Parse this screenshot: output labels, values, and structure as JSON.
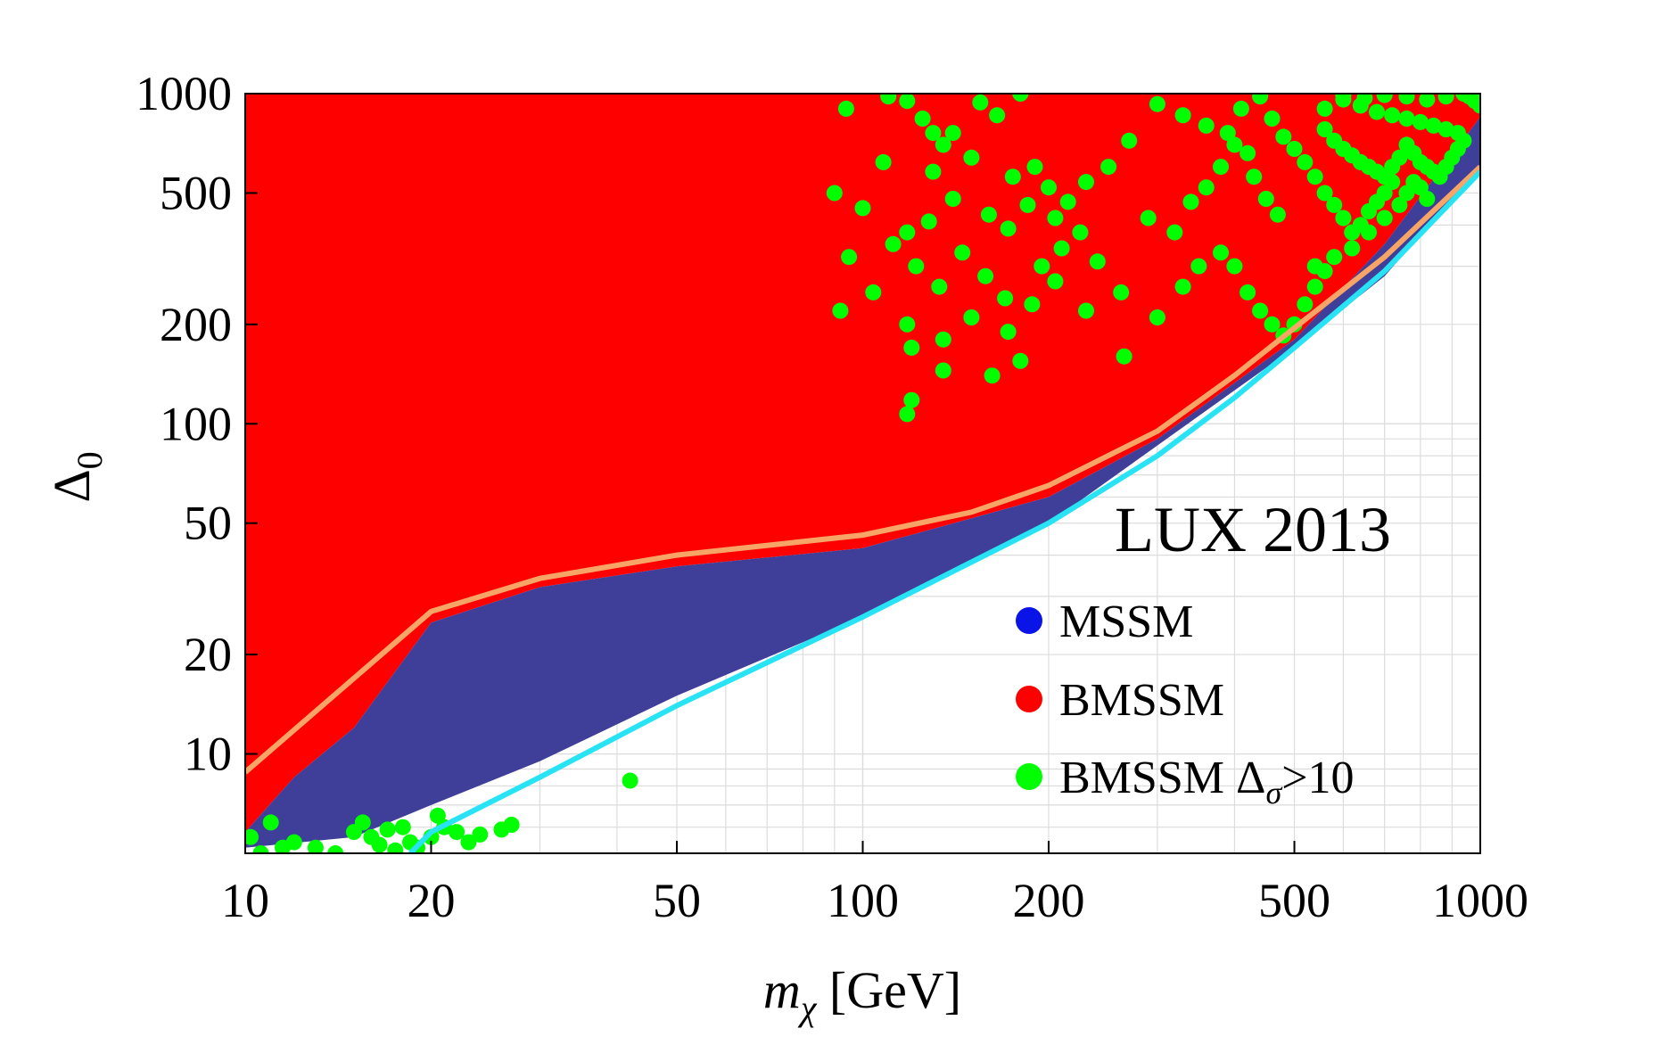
{
  "chart_data": {
    "type": "scatter",
    "xscale": "log",
    "yscale": "log",
    "xlim": [
      10,
      1000
    ],
    "ylim": [
      5,
      1000
    ],
    "xlabel_main": "m",
    "xlabel_sub": "χ",
    "xlabel_unit": " [GeV]",
    "ylabel_main": "Δ",
    "ylabel_sub": "0",
    "annotation": "LUX 2013",
    "xticks": [
      10,
      20,
      50,
      100,
      200,
      500,
      1000
    ],
    "xtick_labels": [
      "10",
      "20",
      "50",
      "100",
      "200",
      "500",
      "1000"
    ],
    "yticks": [
      10,
      20,
      50,
      100,
      200,
      500,
      1000
    ],
    "ytick_labels": [
      "10",
      "20",
      "50",
      "100",
      "200",
      "500",
      "1000"
    ],
    "grid": true,
    "legend_position": "bottom-right",
    "colors": {
      "mssm_marker": "#0a14e6",
      "mssm_region": "#3f3f9a",
      "bmssm": "#ff0000",
      "bmssm_enhanced": "#00ff00",
      "orange_curve": "#f7a467",
      "cyan_curve": "#27e3f4",
      "grid": "#dcdcdc"
    },
    "series": [
      {
        "name": "MSSM",
        "legend_label": "MSSM",
        "kind": "filled-region",
        "upper": [
          [
            10,
            5.8
          ],
          [
            12,
            8.5
          ],
          [
            15,
            12
          ],
          [
            20,
            25
          ],
          [
            30,
            32
          ],
          [
            50,
            37
          ],
          [
            100,
            42
          ],
          [
            200,
            60
          ],
          [
            300,
            90
          ],
          [
            500,
            180
          ],
          [
            700,
            350
          ],
          [
            1000,
            850
          ]
        ],
        "lower": [
          [
            10,
            5.2
          ],
          [
            15,
            5.6
          ],
          [
            20,
            7
          ],
          [
            30,
            9.5
          ],
          [
            50,
            15
          ],
          [
            100,
            26
          ],
          [
            200,
            50
          ],
          [
            500,
            170
          ],
          [
            700,
            280
          ],
          [
            1000,
            600
          ]
        ]
      },
      {
        "name": "BMSSM",
        "legend_label": "BMSSM",
        "kind": "filled-region",
        "note": "fills the area above the MSSM band"
      },
      {
        "name": "BMSSM Δσ>10",
        "legend_label_main": "BMSSM Δ",
        "legend_label_sub": "σ",
        "legend_label_tail": ">10",
        "kind": "scatter",
        "points": [
          [
            94,
            900
          ],
          [
            110,
            980
          ],
          [
            118,
            950
          ],
          [
            125,
            840
          ],
          [
            130,
            760
          ],
          [
            135,
            700
          ],
          [
            140,
            760
          ],
          [
            155,
            940
          ],
          [
            165,
            860
          ],
          [
            180,
            1000
          ],
          [
            108,
            620
          ],
          [
            130,
            580
          ],
          [
            150,
            640
          ],
          [
            175,
            560
          ],
          [
            190,
            600
          ],
          [
            200,
            520
          ],
          [
            215,
            470
          ],
          [
            230,
            540
          ],
          [
            250,
            600
          ],
          [
            270,
            720
          ],
          [
            90,
            500
          ],
          [
            100,
            450
          ],
          [
            118,
            380
          ],
          [
            128,
            410
          ],
          [
            140,
            480
          ],
          [
            160,
            430
          ],
          [
            172,
            390
          ],
          [
            185,
            460
          ],
          [
            205,
            420
          ],
          [
            225,
            380
          ],
          [
            95,
            320
          ],
          [
            112,
            350
          ],
          [
            122,
            300
          ],
          [
            133,
            260
          ],
          [
            145,
            330
          ],
          [
            158,
            280
          ],
          [
            170,
            240
          ],
          [
            195,
            300
          ],
          [
            210,
            340
          ],
          [
            240,
            310
          ],
          [
            92,
            220
          ],
          [
            104,
            250
          ],
          [
            118,
            200
          ],
          [
            135,
            180
          ],
          [
            150,
            210
          ],
          [
            172,
            190
          ],
          [
            188,
            230
          ],
          [
            205,
            270
          ],
          [
            230,
            220
          ],
          [
            262,
            250
          ],
          [
            120,
            170
          ],
          [
            135,
            145
          ],
          [
            162,
            140
          ],
          [
            180,
            155
          ],
          [
            120,
            118
          ],
          [
            118,
            107
          ],
          [
            265,
            160
          ],
          [
            300,
            210
          ],
          [
            330,
            260
          ],
          [
            350,
            300
          ],
          [
            290,
            420
          ],
          [
            320,
            380
          ],
          [
            340,
            470
          ],
          [
            360,
            520
          ],
          [
            380,
            600
          ],
          [
            400,
            700
          ],
          [
            420,
            660
          ],
          [
            430,
            560
          ],
          [
            450,
            480
          ],
          [
            470,
            430
          ],
          [
            300,
            930
          ],
          [
            330,
            860
          ],
          [
            360,
            800
          ],
          [
            390,
            760
          ],
          [
            410,
            900
          ],
          [
            440,
            980
          ],
          [
            460,
            840
          ],
          [
            480,
            740
          ],
          [
            500,
            680
          ],
          [
            520,
            620
          ],
          [
            380,
            330
          ],
          [
            400,
            300
          ],
          [
            420,
            250
          ],
          [
            440,
            220
          ],
          [
            460,
            200
          ],
          [
            480,
            185
          ],
          [
            500,
            200
          ],
          [
            520,
            230
          ],
          [
            540,
            260
          ],
          [
            560,
            290
          ],
          [
            540,
            560
          ],
          [
            560,
            500
          ],
          [
            580,
            460
          ],
          [
            600,
            420
          ],
          [
            620,
            380
          ],
          [
            640,
            400
          ],
          [
            660,
            440
          ],
          [
            680,
            470
          ],
          [
            700,
            500
          ],
          [
            720,
            540
          ],
          [
            560,
            780
          ],
          [
            580,
            720
          ],
          [
            600,
            680
          ],
          [
            620,
            650
          ],
          [
            640,
            620
          ],
          [
            660,
            600
          ],
          [
            680,
            580
          ],
          [
            700,
            560
          ],
          [
            720,
            600
          ],
          [
            740,
            640
          ],
          [
            560,
            900
          ],
          [
            600,
            960
          ],
          [
            640,
            920
          ],
          [
            680,
            880
          ],
          [
            720,
            860
          ],
          [
            760,
            840
          ],
          [
            800,
            820
          ],
          [
            840,
            800
          ],
          [
            880,
            780
          ],
          [
            920,
            760
          ],
          [
            760,
            700
          ],
          [
            780,
            660
          ],
          [
            800,
            620
          ],
          [
            820,
            600
          ],
          [
            840,
            580
          ],
          [
            860,
            560
          ],
          [
            880,
            600
          ],
          [
            900,
            640
          ],
          [
            920,
            680
          ],
          [
            940,
            720
          ],
          [
            740,
            460
          ],
          [
            760,
            500
          ],
          [
            780,
            540
          ],
          [
            800,
            520
          ],
          [
            820,
            480
          ],
          [
            700,
            420
          ],
          [
            660,
            380
          ],
          [
            620,
            340
          ],
          [
            580,
            320
          ],
          [
            540,
            300
          ],
          [
            960,
            980
          ],
          [
            980,
            950
          ],
          [
            1000,
            920
          ],
          [
            940,
            1000
          ],
          [
            880,
            980
          ],
          [
            820,
            960
          ],
          [
            760,
            980
          ],
          [
            700,
            990
          ],
          [
            650,
            970
          ],
          [
            600,
            990
          ],
          [
            10.2,
            5.6
          ],
          [
            10.6,
            5.0
          ],
          [
            11,
            6.2
          ],
          [
            11.5,
            5.2
          ],
          [
            12,
            5.4
          ],
          [
            13,
            5.2
          ],
          [
            14,
            5.0
          ],
          [
            15,
            5.8
          ],
          [
            16,
            5.6
          ],
          [
            16.5,
            5.3
          ],
          [
            17,
            5.9
          ],
          [
            18,
            6.0
          ],
          [
            18.5,
            5.4
          ],
          [
            19,
            5.2
          ],
          [
            20,
            5.6
          ],
          [
            21,
            6.0
          ],
          [
            22,
            5.8
          ],
          [
            23,
            5.4
          ],
          [
            24,
            5.7
          ],
          [
            26,
            5.9
          ],
          [
            27,
            6.1
          ],
          [
            15.5,
            6.2
          ],
          [
            17.5,
            5.1
          ],
          [
            20.5,
            6.5
          ],
          [
            42,
            8.3
          ]
        ]
      }
    ],
    "curves": [
      {
        "name": "orange bound",
        "points": [
          [
            10,
            8.8
          ],
          [
            20,
            27
          ],
          [
            30,
            34
          ],
          [
            50,
            40
          ],
          [
            100,
            46
          ],
          [
            150,
            54
          ],
          [
            200,
            65
          ],
          [
            300,
            95
          ],
          [
            400,
            140
          ],
          [
            500,
            195
          ],
          [
            700,
            320
          ],
          [
            1000,
            600
          ]
        ]
      },
      {
        "name": "cyan bound",
        "points": [
          [
            18.5,
            5
          ],
          [
            20,
            5.8
          ],
          [
            30,
            8.5
          ],
          [
            50,
            14
          ],
          [
            100,
            26
          ],
          [
            200,
            50
          ],
          [
            300,
            80
          ],
          [
            400,
            120
          ],
          [
            500,
            170
          ],
          [
            700,
            290
          ],
          [
            1000,
            580
          ]
        ]
      }
    ]
  }
}
